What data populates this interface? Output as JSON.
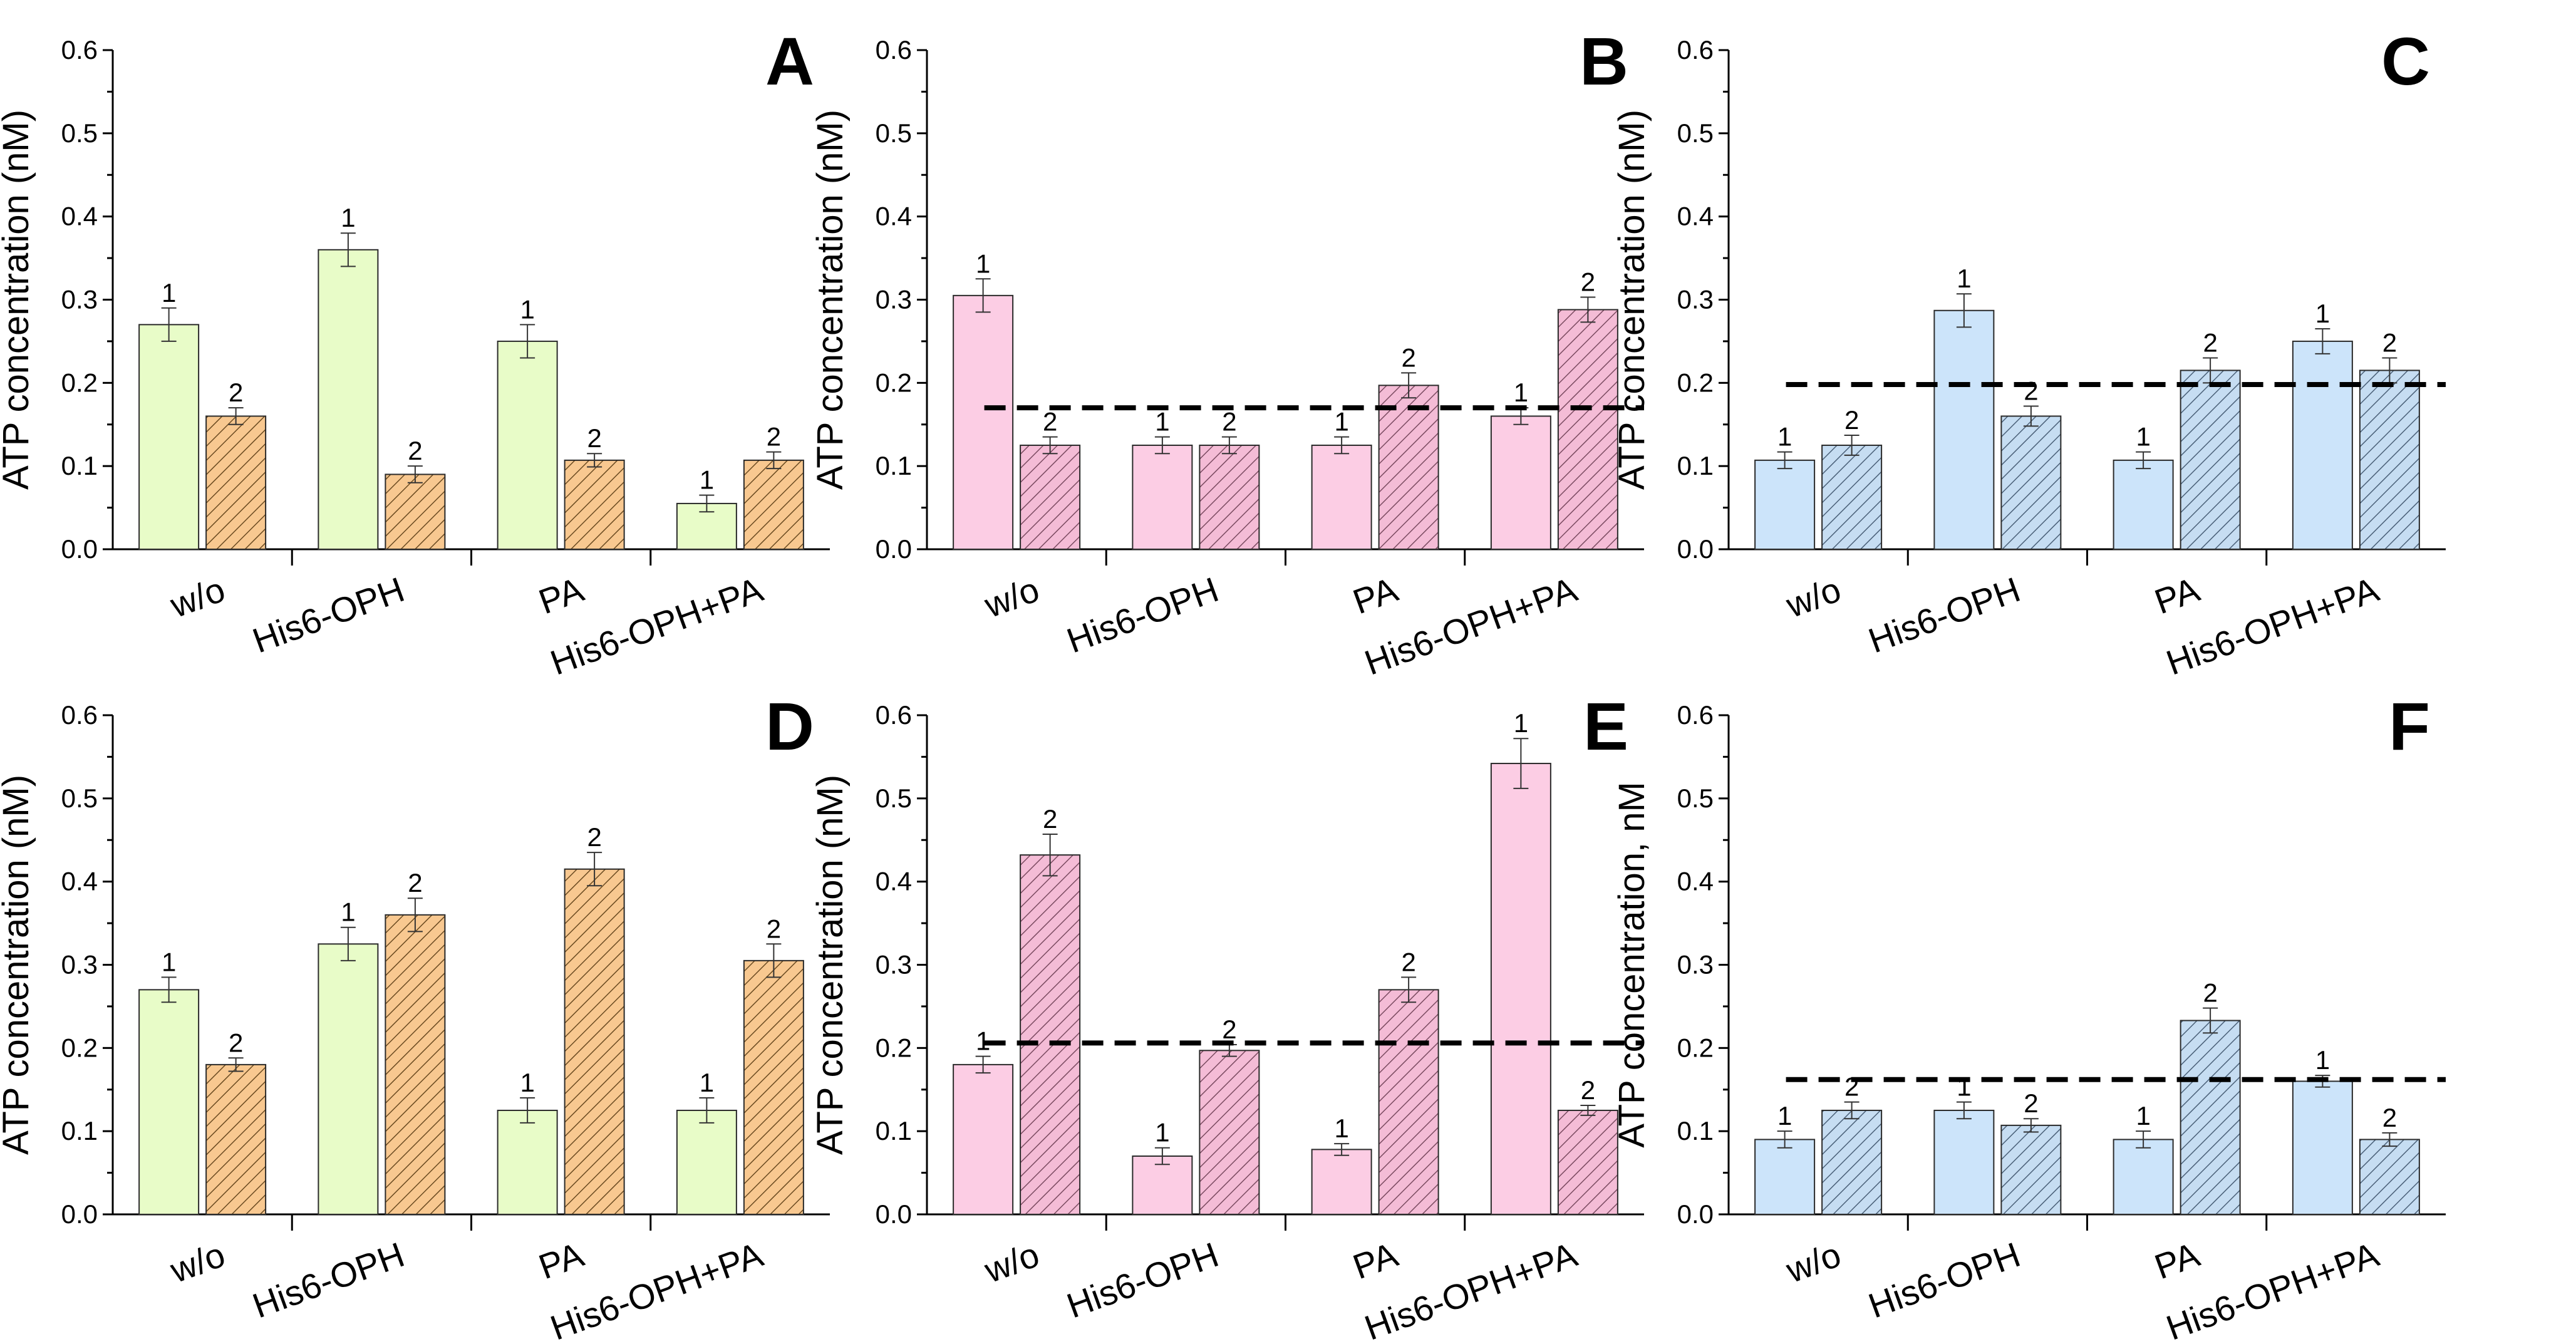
{
  "chart_data": [
    {
      "type": "bar",
      "panel_label": "A",
      "ylabel": "ATP concentration (nM)",
      "ylim": [
        0,
        0.6
      ],
      "yticks": [
        "0.0",
        "0.1",
        "0.2",
        "0.3",
        "0.4",
        "0.5",
        "0.6"
      ],
      "categories": [
        "w/o",
        "His6-OPH",
        "PA",
        "His6-OPH+PA"
      ],
      "colors": {
        "bar": "#e8fcc8",
        "hatch_fill": "#f8c890",
        "hatch_line": "#6a4a20"
      },
      "series": [
        {
          "name": "1",
          "style": "plain",
          "values": [
            0.27,
            0.36,
            0.25,
            0.055
          ],
          "errors": [
            0.02,
            0.02,
            0.02,
            0.01
          ]
        },
        {
          "name": "2",
          "style": "hatched",
          "values": [
            0.16,
            0.09,
            0.107,
            0.107
          ],
          "errors": [
            0.01,
            0.01,
            0.008,
            0.01
          ]
        }
      ],
      "reference_line": null
    },
    {
      "type": "bar",
      "panel_label": "B",
      "ylabel": "ATP concentration (nM)",
      "ylim": [
        0,
        0.6
      ],
      "yticks": [
        "0.0",
        "0.1",
        "0.2",
        "0.3",
        "0.4",
        "0.5",
        "0.6"
      ],
      "categories": [
        "w/o",
        "His6-OPH",
        "PA",
        "His6-OPH+PA"
      ],
      "colors": {
        "bar": "#fccde4",
        "hatch_fill": "#f4bcd6",
        "hatch_line": "#7a4a60"
      },
      "series": [
        {
          "name": "1",
          "style": "plain",
          "values": [
            0.305,
            0.125,
            0.125,
            0.16
          ],
          "errors": [
            0.02,
            0.01,
            0.01,
            0.01
          ]
        },
        {
          "name": "2",
          "style": "hatched",
          "values": [
            0.125,
            0.125,
            0.197,
            0.288
          ],
          "errors": [
            0.01,
            0.01,
            0.015,
            0.015
          ]
        }
      ],
      "reference_line": 0.17
    },
    {
      "type": "bar",
      "panel_label": "C",
      "ylabel": "ATP concentration (nM)",
      "ylim": [
        0,
        0.6
      ],
      "yticks": [
        "0.0",
        "0.1",
        "0.2",
        "0.3",
        "0.4",
        "0.5",
        "0.6"
      ],
      "categories": [
        "w/o",
        "His6-OPH",
        "PA",
        "His6-OPH+PA"
      ],
      "colors": {
        "bar": "#cce4fa",
        "hatch_fill": "#c6ddf2",
        "hatch_line": "#4a6078"
      },
      "series": [
        {
          "name": "1",
          "style": "plain",
          "values": [
            0.107,
            0.287,
            0.107,
            0.25
          ],
          "errors": [
            0.01,
            0.02,
            0.01,
            0.015
          ]
        },
        {
          "name": "2",
          "style": "hatched",
          "values": [
            0.125,
            0.16,
            0.215,
            0.215
          ],
          "errors": [
            0.012,
            0.012,
            0.015,
            0.015
          ]
        }
      ],
      "reference_line": 0.198
    },
    {
      "type": "bar",
      "panel_label": "D",
      "ylabel": "ATP concentration (nM)",
      "ylim": [
        0,
        0.6
      ],
      "yticks": [
        "0.0",
        "0.1",
        "0.2",
        "0.3",
        "0.4",
        "0.5",
        "0.6"
      ],
      "categories": [
        "w/o",
        "His6-OPH",
        "PA",
        "His6-OPH+PA"
      ],
      "colors": {
        "bar": "#e8fcc8",
        "hatch_fill": "#f8c890",
        "hatch_line": "#6a4a20"
      },
      "series": [
        {
          "name": "1",
          "style": "plain",
          "values": [
            0.27,
            0.325,
            0.125,
            0.125
          ],
          "errors": [
            0.015,
            0.02,
            0.015,
            0.015
          ]
        },
        {
          "name": "2",
          "style": "hatched",
          "values": [
            0.18,
            0.36,
            0.415,
            0.305
          ],
          "errors": [
            0.008,
            0.02,
            0.02,
            0.02
          ]
        }
      ],
      "reference_line": null
    },
    {
      "type": "bar",
      "panel_label": "E",
      "ylabel": "ATP concentration (nM)",
      "ylim": [
        0,
        0.6
      ],
      "yticks": [
        "0.0",
        "0.1",
        "0.2",
        "0.3",
        "0.4",
        "0.5",
        "0.6"
      ],
      "categories": [
        "w/o",
        "His6-OPH",
        "PA",
        "His6-OPH+PA"
      ],
      "colors": {
        "bar": "#fccde4",
        "hatch_fill": "#f4bcd6",
        "hatch_line": "#7a4a60"
      },
      "series": [
        {
          "name": "1",
          "style": "plain",
          "values": [
            0.18,
            0.07,
            0.078,
            0.542
          ],
          "errors": [
            0.01,
            0.01,
            0.007,
            0.03
          ]
        },
        {
          "name": "2",
          "style": "hatched",
          "values": [
            0.432,
            0.197,
            0.27,
            0.125
          ],
          "errors": [
            0.025,
            0.007,
            0.015,
            0.006
          ]
        }
      ],
      "reference_line": 0.206
    },
    {
      "type": "bar",
      "panel_label": "F",
      "ylabel": "ATP concentration, nM",
      "ylim": [
        0,
        0.6
      ],
      "yticks": [
        "0.0",
        "0.1",
        "0.2",
        "0.3",
        "0.4",
        "0.5",
        "0.6"
      ],
      "categories": [
        "w/o",
        "His6-OPH",
        "PA",
        "His6-OPH+PA"
      ],
      "colors": {
        "bar": "#cce4fa",
        "hatch_fill": "#c6ddf2",
        "hatch_line": "#4a6078"
      },
      "series": [
        {
          "name": "1",
          "style": "plain",
          "values": [
            0.09,
            0.125,
            0.09,
            0.16
          ],
          "errors": [
            0.01,
            0.01,
            0.01,
            0.007
          ]
        },
        {
          "name": "2",
          "style": "hatched",
          "values": [
            0.125,
            0.107,
            0.233,
            0.09
          ],
          "errors": [
            0.01,
            0.008,
            0.015,
            0.008
          ]
        }
      ],
      "reference_line": 0.162
    }
  ]
}
